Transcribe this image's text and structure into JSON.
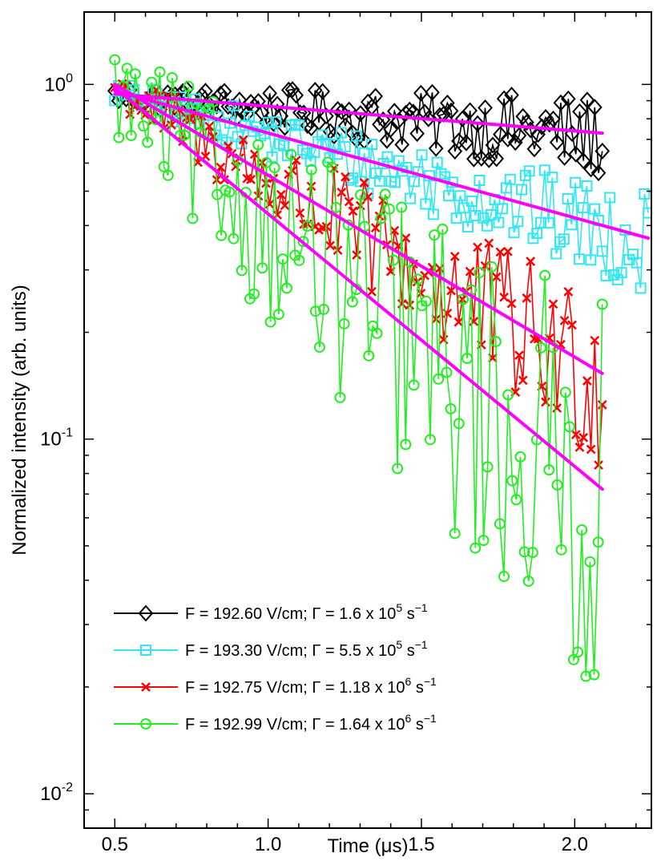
{
  "chart_data": {
    "type": "scatter",
    "xlabel": "Time (μs)",
    "ylabel": "Normalized intensity (arb. units)",
    "xlim": [
      0.4,
      2.25
    ],
    "ylim": [
      0.008,
      1.6
    ],
    "yscale": "log",
    "x_ticks": [
      0.5,
      1.0,
      1.5,
      2.0
    ],
    "x_tick_labels": [
      "0.5",
      "1.0",
      "1.5",
      "2.0"
    ],
    "y_major_ticks": [
      {
        "value": 1,
        "base": "10",
        "exp": "0"
      },
      {
        "value": 0.1,
        "base": "10",
        "exp": "-1"
      },
      {
        "value": 0.01,
        "base": "10",
        "exp": "-2"
      }
    ],
    "legend_position": "lower-left",
    "series": [
      {
        "name": "F = 192.60 V/cm; Γ = 1.6 x 10⁵ s⁻¹",
        "legend": {
          "pre": "F = 192.60 V/cm; Γ = 1.6 x 10",
          "exp1": "5",
          "mid": " s",
          "exp2": "−1"
        },
        "color": "#000000",
        "marker": "diamond",
        "rate_per_us": 0.16,
        "x_start": 0.5,
        "x_end": 2.09,
        "n": 130,
        "noise": 0.06,
        "fit": {
          "amplitude": 0.94,
          "t0": 0.5,
          "rate_per_us": 0.16,
          "x_end": 2.09
        }
      },
      {
        "name": "F = 193.30 V/cm; Γ = 5.5 x 10⁵ s⁻¹",
        "legend": {
          "pre": "F = 193.30 V/cm; Γ = 5.5 x 10",
          "exp1": "5",
          "mid": " s",
          "exp2": "−1"
        },
        "color": "#33e6f2",
        "marker": "square",
        "rate_per_us": 0.55,
        "x_start": 0.5,
        "x_end": 2.24,
        "n": 140,
        "noise": 0.07,
        "fit": {
          "amplitude": 0.96,
          "t0": 0.5,
          "rate_per_us": 0.55,
          "x_end": 2.24
        }
      },
      {
        "name": "F = 192.75 V/cm; Γ = 1.18 x 10⁶ s⁻¹",
        "legend": {
          "pre": "F = 192.75 V/cm; Γ = 1.18 x 10",
          "exp1": "6",
          "mid": " s",
          "exp2": "−1"
        },
        "color": "#ff0000",
        "marker": "x",
        "rate_per_us": 1.18,
        "x_start": 0.5,
        "x_end": 2.09,
        "n": 130,
        "noise": 0.13,
        "fit": {
          "amplitude": 1.0,
          "t0": 0.5,
          "rate_per_us": 1.18,
          "x_end": 2.09
        }
      },
      {
        "name": "F = 192.99 V/cm; Γ = 1.64 x 10⁶ s⁻¹",
        "legend": {
          "pre": "F = 192.99 V/cm; Γ = 1.64 x 10",
          "exp1": "6",
          "mid": " s",
          "exp2": "−1"
        },
        "color": "#22ee22",
        "marker": "circle",
        "rate_per_us": 1.64,
        "x_start": 0.5,
        "x_end": 2.09,
        "n": 120,
        "noise": 0.3,
        "fit": {
          "amplitude": 0.98,
          "t0": 0.5,
          "rate_per_us": 1.64,
          "x_end": 2.09
        }
      }
    ],
    "fit_color": "#ff00ff"
  }
}
